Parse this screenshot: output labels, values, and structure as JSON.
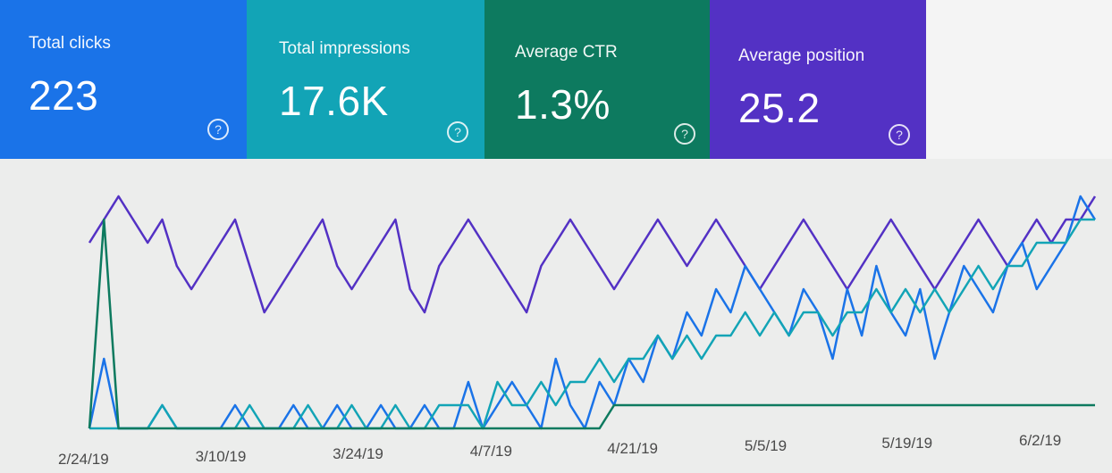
{
  "metrics": [
    {
      "label": "Total clicks",
      "value": "223",
      "color": "#1a73e8",
      "icon": "help-icon"
    },
    {
      "label": "Total impressions",
      "value": "17.6K",
      "color": "#12a4b6",
      "icon": "help-icon"
    },
    {
      "label": "Average CTR",
      "value": "1.3%",
      "color": "#0d7a5f",
      "icon": "help-icon"
    },
    {
      "label": "Average position",
      "value": "25.2",
      "color": "#5331c4",
      "icon": "help-icon"
    }
  ],
  "help_glyph": "?",
  "chart_data": {
    "type": "line",
    "x_tick_labels": [
      "2/24/19",
      "3/10/19",
      "3/24/19",
      "4/7/19",
      "4/21/19",
      "5/5/19",
      "5/19/19",
      "6/2/19"
    ],
    "grid": false,
    "legend": "none",
    "series": [
      {
        "color": "#5331c4",
        "values": [
          8,
          9,
          10,
          9,
          8,
          9,
          7,
          6,
          7,
          8,
          9,
          7,
          5,
          6,
          7,
          8,
          9,
          7,
          6,
          7,
          8,
          9,
          6,
          5,
          7,
          8,
          9,
          8,
          7,
          6,
          5,
          7,
          8,
          9,
          8,
          7,
          6,
          7,
          8,
          9,
          8,
          7,
          8,
          9,
          8,
          7,
          6,
          7,
          8,
          9,
          8,
          7,
          6,
          7,
          8,
          9,
          8,
          7,
          6,
          7,
          8,
          9,
          8,
          7,
          8,
          9,
          8,
          9,
          9,
          10
        ]
      },
      {
        "color": "#1a73e8",
        "values": [
          0,
          3,
          0,
          0,
          0,
          1,
          0,
          0,
          0,
          0,
          1,
          0,
          0,
          0,
          1,
          0,
          0,
          1,
          0,
          0,
          1,
          0,
          0,
          1,
          0,
          0,
          2,
          0,
          1,
          2,
          1,
          0,
          3,
          1,
          0,
          2,
          1,
          3,
          2,
          4,
          3,
          5,
          4,
          6,
          5,
          7,
          6,
          5,
          4,
          6,
          5,
          3,
          6,
          4,
          7,
          5,
          4,
          6,
          3,
          5,
          7,
          6,
          5,
          7,
          8,
          6,
          7,
          8,
          10,
          9
        ]
      },
      {
        "color": "#12a4b6",
        "values": [
          0,
          0,
          0,
          0,
          0,
          1,
          0,
          0,
          0,
          0,
          0,
          1,
          0,
          0,
          0,
          1,
          0,
          0,
          1,
          0,
          0,
          1,
          0,
          0,
          1,
          1,
          1,
          0,
          2,
          1,
          1,
          2,
          1,
          2,
          2,
          3,
          2,
          3,
          3,
          4,
          3,
          4,
          3,
          4,
          4,
          5,
          4,
          5,
          4,
          5,
          5,
          4,
          5,
          5,
          6,
          5,
          6,
          5,
          6,
          5,
          6,
          7,
          6,
          7,
          7,
          8,
          8,
          8,
          9,
          9
        ]
      },
      {
        "color": "#0d7a5f",
        "values": [
          0,
          9,
          0,
          0,
          0,
          0,
          0,
          0,
          0,
          0,
          0,
          0,
          0,
          0,
          0,
          0,
          0,
          0,
          0,
          0,
          0,
          0,
          0,
          0,
          0,
          0,
          0,
          0,
          0,
          0,
          0,
          0,
          0,
          0,
          0,
          0,
          1,
          1,
          1,
          1,
          1,
          1,
          1,
          1,
          1,
          1,
          1,
          1,
          1,
          1,
          1,
          1,
          1,
          1,
          1,
          1,
          1,
          1,
          1,
          1,
          1,
          1,
          1,
          1,
          1,
          1,
          1,
          1,
          1,
          1
        ]
      }
    ]
  }
}
